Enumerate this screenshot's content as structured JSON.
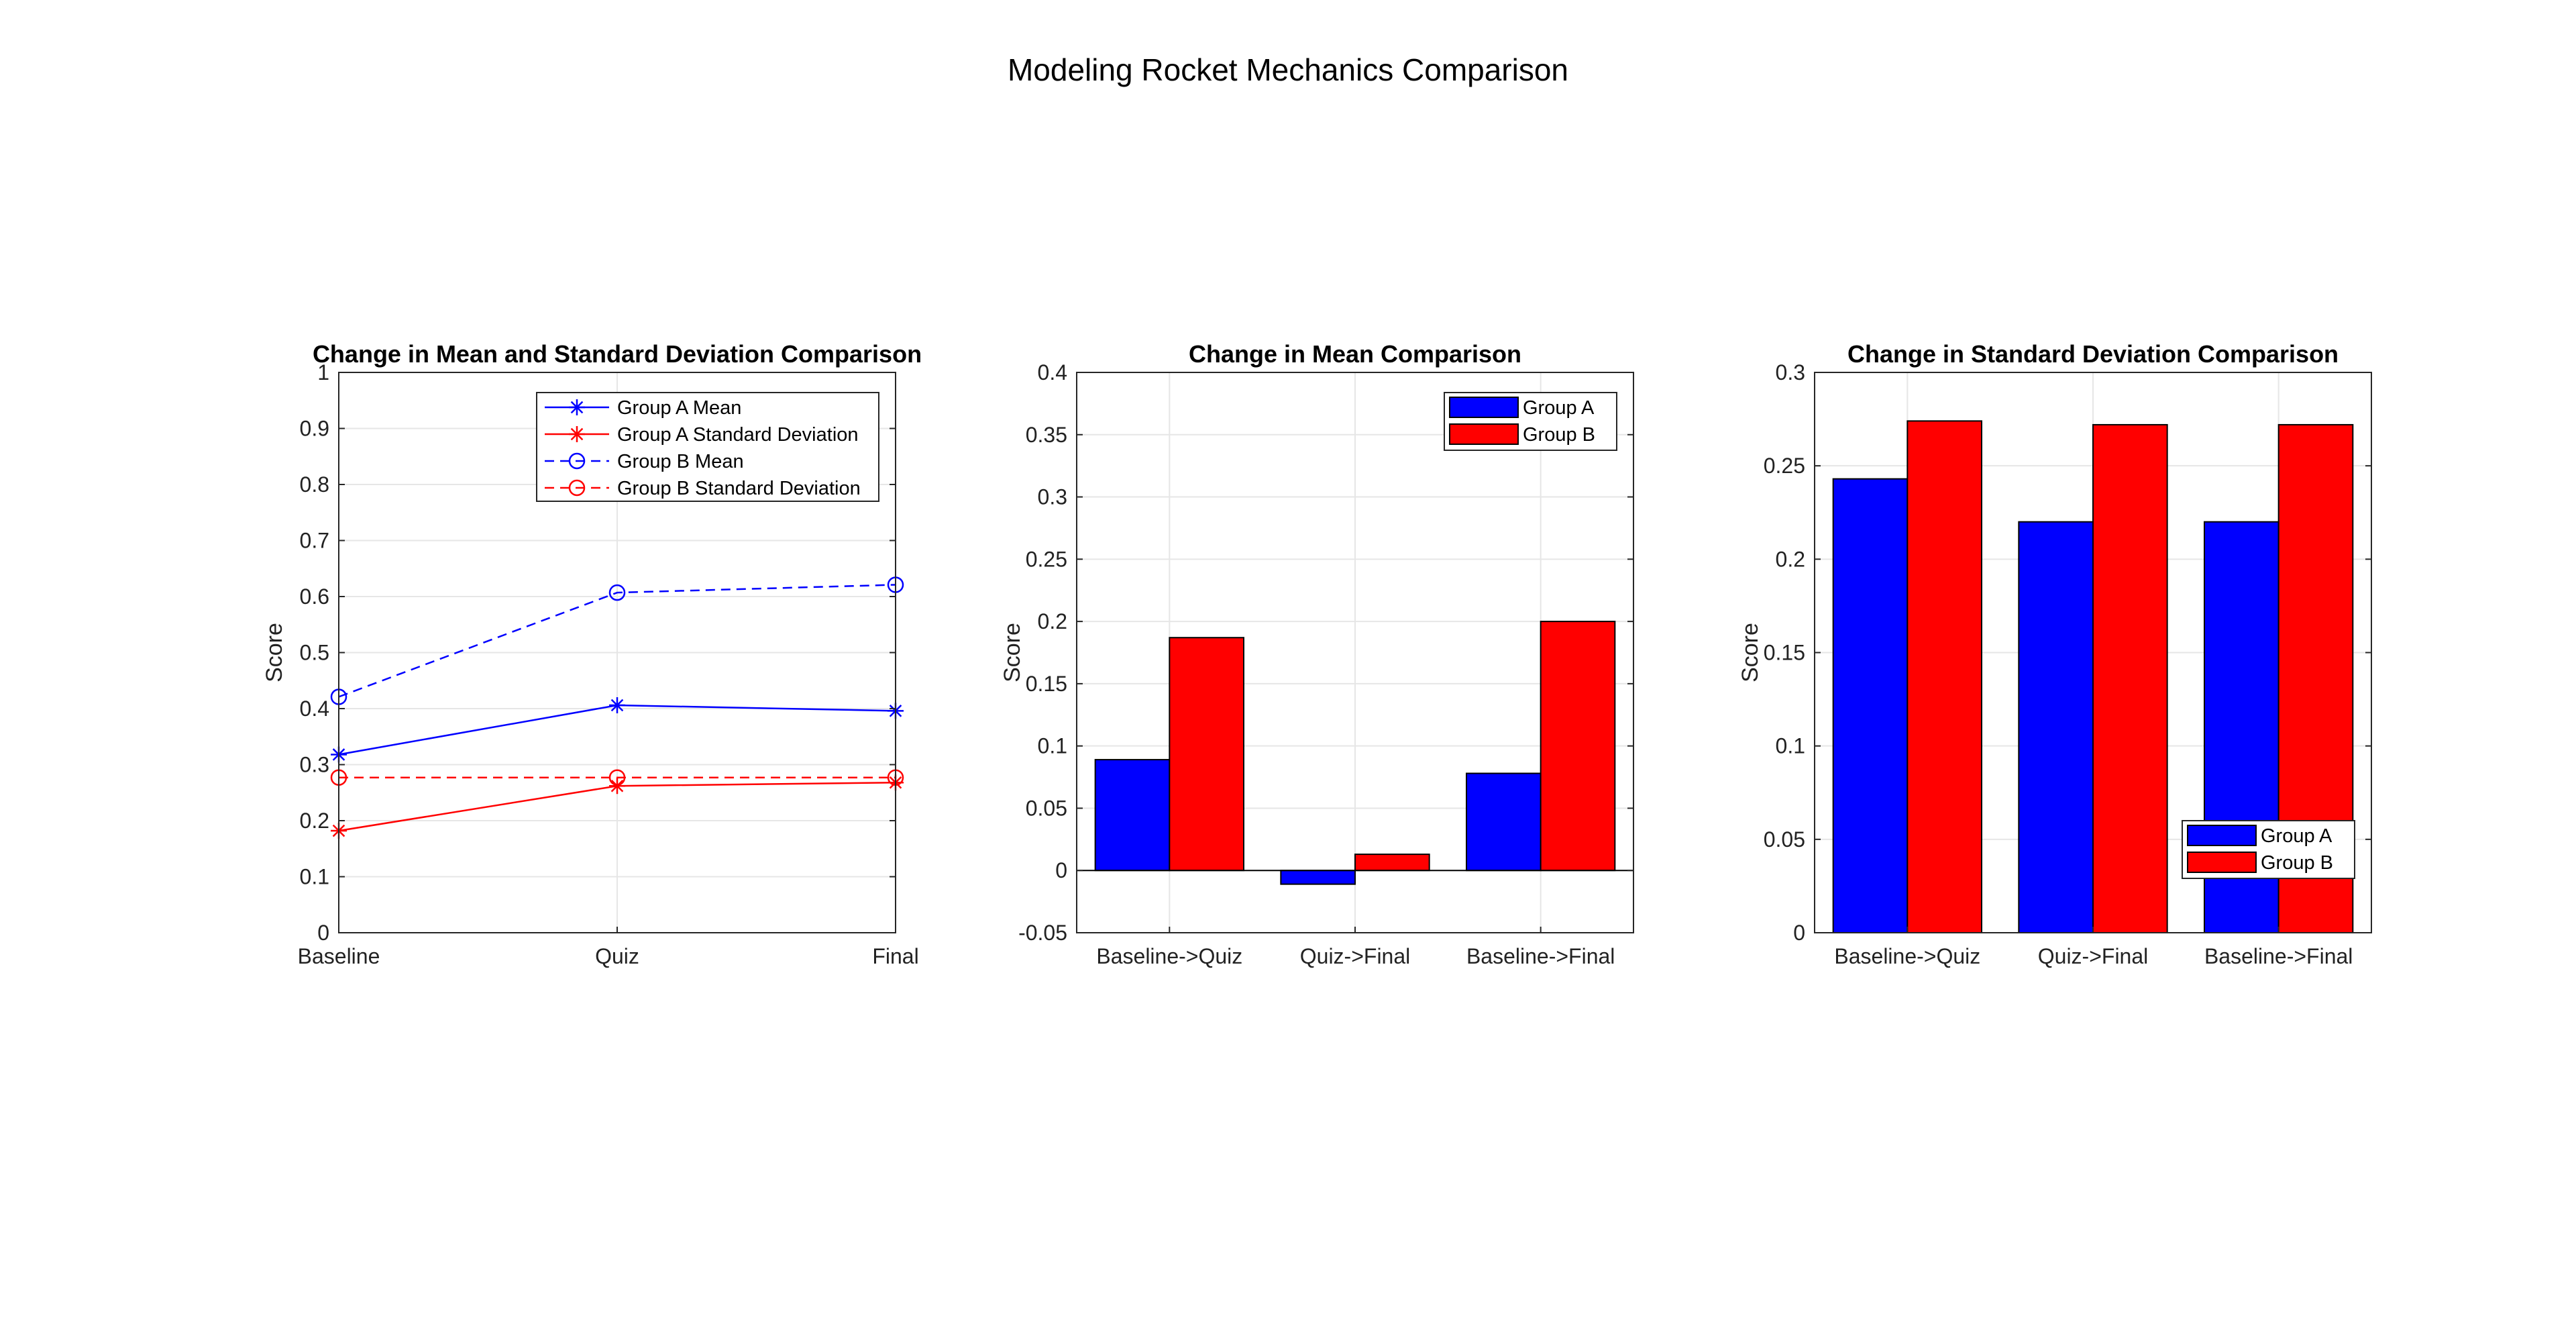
{
  "figure_title": "Modeling Rocket Mechanics Comparison",
  "chart_data": [
    {
      "type": "line",
      "title": "Change in Mean and Standard Deviation Comparison",
      "xlabel": "",
      "ylabel": "Score",
      "categories": [
        "Baseline",
        "Quiz",
        "Final"
      ],
      "ylim": [
        0,
        1
      ],
      "yticks": [
        "0",
        "0.1",
        "0.2",
        "0.3",
        "0.4",
        "0.5",
        "0.6",
        "0.7",
        "0.8",
        "0.9",
        "1"
      ],
      "grid": true,
      "legend_position": "top-right",
      "series": [
        {
          "name": "Group A Mean",
          "values": [
            0.318,
            0.406,
            0.396
          ],
          "color": "#0000ff",
          "marker": "asterisk",
          "line": "solid"
        },
        {
          "name": "Group A Standard Deviation",
          "values": [
            0.182,
            0.262,
            0.268
          ],
          "color": "#ff0000",
          "marker": "asterisk",
          "line": "solid"
        },
        {
          "name": "Group B Mean",
          "values": [
            0.421,
            0.607,
            0.621
          ],
          "color": "#0000ff",
          "marker": "circle",
          "line": "dashed"
        },
        {
          "name": "Group B Standard Deviation",
          "values": [
            0.277,
            0.277,
            0.277
          ],
          "color": "#ff0000",
          "marker": "circle",
          "line": "dashed"
        }
      ]
    },
    {
      "type": "bar",
      "title": "Change in Mean Comparison",
      "xlabel": "",
      "ylabel": "Score",
      "categories": [
        "Baseline->Quiz",
        "Quiz->Final",
        "Baseline->Final"
      ],
      "ylim": [
        -0.05,
        0.4
      ],
      "yticks": [
        "-0.05",
        "0",
        "0.05",
        "0.1",
        "0.15",
        "0.2",
        "0.25",
        "0.3",
        "0.35",
        "0.4"
      ],
      "grid": true,
      "legend_position": "top-right",
      "series": [
        {
          "name": "Group A",
          "values": [
            0.089,
            -0.011,
            0.078
          ],
          "color": "#0000ff"
        },
        {
          "name": "Group B",
          "values": [
            0.187,
            0.013,
            0.2
          ],
          "color": "#ff0000"
        }
      ]
    },
    {
      "type": "bar",
      "title": "Change in Standard Deviation Comparison",
      "xlabel": "",
      "ylabel": "Score",
      "categories": [
        "Baseline->Quiz",
        "Quiz->Final",
        "Baseline->Final"
      ],
      "ylim": [
        0,
        0.3
      ],
      "yticks": [
        "0",
        "0.05",
        "0.1",
        "0.15",
        "0.2",
        "0.25",
        "0.3"
      ],
      "grid": true,
      "legend_position": "bottom-right",
      "series": [
        {
          "name": "Group A",
          "values": [
            0.243,
            0.22,
            0.22
          ],
          "color": "#0000ff"
        },
        {
          "name": "Group B",
          "values": [
            0.274,
            0.272,
            0.272
          ],
          "color": "#ff0000"
        }
      ]
    }
  ]
}
